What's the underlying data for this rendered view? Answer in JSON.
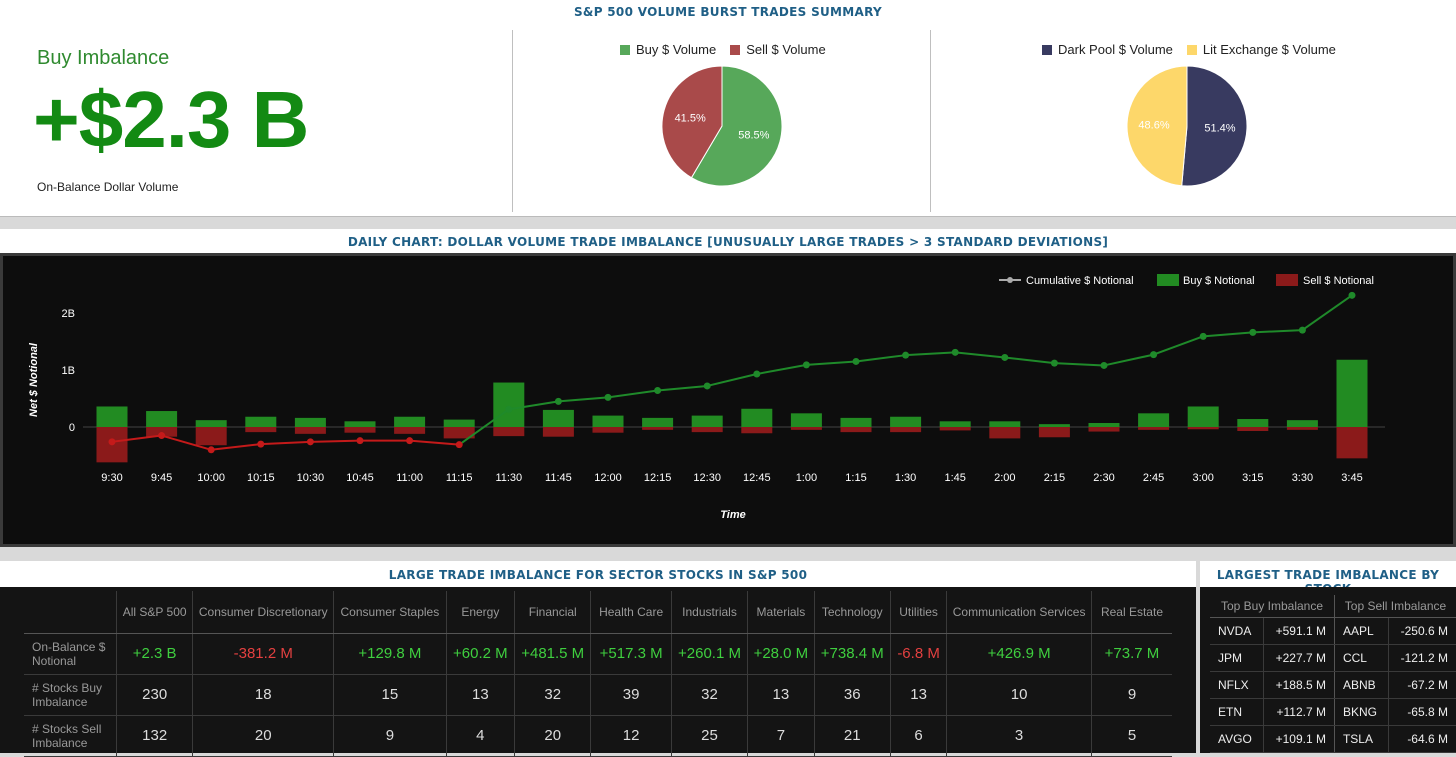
{
  "summary": {
    "title": "S&P 500 VOLUME BURST TRADES SUMMARY",
    "buy_imbalance_label": "Buy Imbalance",
    "buy_imbalance_value": "+$2.3 B",
    "buy_imbalance_sub": "On-Balance Dollar Volume",
    "pie1": {
      "legend": [
        {
          "label": "Buy $ Volume",
          "color": "#57a85a"
        },
        {
          "label": "Sell $ Volume",
          "color": "#a94a4a"
        }
      ],
      "slices": [
        {
          "label": "58.5%",
          "value": 58.5,
          "color": "#57a85a"
        },
        {
          "label": "41.5%",
          "value": 41.5,
          "color": "#a94a4a"
        }
      ]
    },
    "pie2": {
      "legend": [
        {
          "label": "Dark Pool $ Volume",
          "color": "#383a60"
        },
        {
          "label": "Lit Exchange $ Volume",
          "color": "#fdd76a"
        }
      ],
      "slices": [
        {
          "label": "51.4%",
          "value": 51.4,
          "color": "#383a60"
        },
        {
          "label": "48.6%",
          "value": 48.6,
          "color": "#fdd76a"
        }
      ]
    }
  },
  "chart_title": "DAILY CHART: DOLLAR VOLUME TRADE IMBALANCE [UNUSUALLY LARGE TRADES > 3 STANDARD DEVIATIONS]",
  "chart_data": {
    "type": "bar",
    "xlabel": "Time",
    "ylabel": "Net $ Notional",
    "yticks": [
      "2B",
      "1B",
      "0"
    ],
    "ylim": [
      -0.8,
      2.4
    ],
    "legend": [
      {
        "name": "Cumulative $ Notional",
        "color": "#aaaaaa"
      },
      {
        "name": "Buy $ Notional",
        "color": "#228b22"
      },
      {
        "name": "Sell $ Notional",
        "color": "#8b1a1a"
      }
    ],
    "categories": [
      "9:30",
      "9:45",
      "10:00",
      "10:15",
      "10:30",
      "10:45",
      "11:00",
      "11:15",
      "11:30",
      "11:45",
      "12:00",
      "12:15",
      "12:30",
      "12:45",
      "1:00",
      "1:15",
      "1:30",
      "1:45",
      "2:00",
      "2:15",
      "2:30",
      "2:45",
      "3:00",
      "3:15",
      "3:30",
      "3:45"
    ],
    "series": [
      {
        "name": "Buy $ Notional",
        "values": [
          0.36,
          0.28,
          0.12,
          0.18,
          0.16,
          0.1,
          0.18,
          0.13,
          0.78,
          0.3,
          0.2,
          0.16,
          0.2,
          0.32,
          0.24,
          0.16,
          0.18,
          0.1,
          0.1,
          0.05,
          0.07,
          0.24,
          0.36,
          0.14,
          0.12,
          1.18
        ]
      },
      {
        "name": "Sell $ Notional",
        "values": [
          -0.62,
          -0.17,
          -0.32,
          -0.09,
          -0.12,
          -0.1,
          -0.12,
          -0.2,
          -0.16,
          -0.17,
          -0.1,
          -0.05,
          -0.09,
          -0.11,
          -0.05,
          -0.09,
          -0.09,
          -0.06,
          -0.2,
          -0.18,
          -0.08,
          -0.05,
          -0.04,
          -0.07,
          -0.05,
          -0.55
        ]
      },
      {
        "name": "Cumulative $ Notional",
        "values": [
          -0.26,
          -0.15,
          -0.4,
          -0.3,
          -0.26,
          -0.24,
          -0.24,
          -0.31,
          0.31,
          0.45,
          0.52,
          0.64,
          0.72,
          0.93,
          1.09,
          1.15,
          1.26,
          1.31,
          1.22,
          1.12,
          1.08,
          1.27,
          1.59,
          1.66,
          1.7,
          2.31
        ]
      }
    ]
  },
  "sector_title": "LARGE TRADE IMBALANCE FOR SECTOR STOCKS IN S&P 500",
  "sector_table": {
    "columns": [
      "All S&P 500",
      "Consumer Discretionary",
      "Consumer Staples",
      "Energy",
      "Financial",
      "Health Care",
      "Industrials",
      "Materials",
      "Technology",
      "Utilities",
      "Communication Services",
      "Real Estate"
    ],
    "rows": [
      {
        "label": "On-Balance $ Notional",
        "values": [
          "+2.3 B",
          "-381.2 M",
          "+129.8 M",
          "+60.2 M",
          "+481.5 M",
          "+517.3 M",
          "+260.1 M",
          "+28.0 M",
          "+738.4 M",
          "-6.8 M",
          "+426.9 M",
          "+73.7 M"
        ]
      },
      {
        "label": "# Stocks Buy Imbalance",
        "values": [
          "230",
          "18",
          "15",
          "13",
          "32",
          "39",
          "32",
          "13",
          "36",
          "13",
          "10",
          "9"
        ]
      },
      {
        "label": "# Stocks Sell Imbalance",
        "values": [
          "132",
          "20",
          "9",
          "4",
          "20",
          "12",
          "25",
          "7",
          "21",
          "6",
          "3",
          "5"
        ]
      }
    ]
  },
  "stock_title": "LARGEST TRADE IMBALANCE BY STOCK",
  "stock_table": {
    "headers": [
      "Top Buy Imbalance",
      "Top Sell Imbalance"
    ],
    "rows": [
      {
        "buy_sym": "NVDA",
        "buy_val": "+591.1 M",
        "sell_sym": "AAPL",
        "sell_val": "-250.6 M"
      },
      {
        "buy_sym": "JPM",
        "buy_val": "+227.7 M",
        "sell_sym": "CCL",
        "sell_val": "-121.2 M"
      },
      {
        "buy_sym": "NFLX",
        "buy_val": "+188.5 M",
        "sell_sym": "ABNB",
        "sell_val": "-67.2 M"
      },
      {
        "buy_sym": "ETN",
        "buy_val": "+112.7 M",
        "sell_sym": "BKNG",
        "sell_val": "-65.8 M"
      },
      {
        "buy_sym": "AVGO",
        "buy_val": "+109.1 M",
        "sell_sym": "TSLA",
        "sell_val": "-64.6 M"
      }
    ]
  }
}
